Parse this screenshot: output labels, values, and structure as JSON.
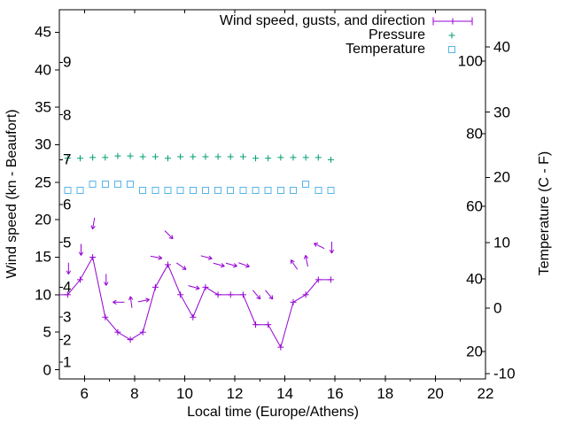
{
  "chart_data": {
    "type": "line",
    "title": "",
    "x_axis": {
      "label": "Local time (Europe/Athens)",
      "range_hours": [
        5,
        22
      ],
      "major_ticks": [
        6,
        8,
        10,
        12,
        14,
        16,
        18,
        20,
        22
      ],
      "minor_tick_hours": [
        6,
        7,
        8,
        9,
        10,
        11,
        12,
        13,
        14,
        15,
        16,
        17,
        18,
        19,
        20,
        21
      ]
    },
    "y_left": {
      "label": "Wind speed (kn - Beaufort)",
      "range_kn": [
        -1.2,
        48
      ],
      "major_ticks_kn": [
        0,
        5,
        10,
        15,
        20,
        25,
        30,
        35,
        40,
        45
      ],
      "beaufort_scale": [
        {
          "bft": "1",
          "kn": 1
        },
        {
          "bft": "2",
          "kn": 4
        },
        {
          "bft": "3",
          "kn": 7
        },
        {
          "bft": "4",
          "kn": 11
        },
        {
          "bft": "5",
          "kn": 17
        },
        {
          "bft": "6",
          "kn": 22
        },
        {
          "bft": "7",
          "kn": 28
        },
        {
          "bft": "8",
          "kn": 34
        },
        {
          "bft": "9",
          "kn": 41
        }
      ]
    },
    "y_right": {
      "label": "Temperature (C - F)",
      "celsius_ticks": [
        -10,
        0,
        10,
        20,
        30,
        40
      ],
      "fahrenheit_labels": [
        20,
        40,
        60,
        80,
        100
      ]
    },
    "legend": {
      "entries": [
        {
          "label": "Wind speed, gusts, and direction",
          "marker": "line-plus",
          "color": "#9400d3"
        },
        {
          "label": "Pressure",
          "marker": "plus",
          "color": "#009e73"
        },
        {
          "label": "Temperature",
          "marker": "square",
          "color": "#56b4e9"
        }
      ]
    },
    "series": {
      "time_h": [
        5.33,
        5.83,
        6.33,
        6.83,
        7.33,
        7.83,
        8.33,
        8.83,
        9.33,
        9.83,
        10.33,
        10.83,
        11.33,
        11.83,
        12.33,
        12.83,
        13.33,
        13.83,
        14.33,
        14.83,
        15.33,
        15.83
      ],
      "wind": {
        "name": "Wind speed, gusts, and direction",
        "color": "#9400d3",
        "lead_in": {
          "t": 5.0,
          "kn": 10
        },
        "speed_kn": [
          10,
          12,
          15,
          7,
          5,
          4,
          5,
          11,
          14,
          10,
          7,
          11,
          10,
          10,
          10,
          6,
          6,
          3,
          9,
          10,
          12,
          12
        ],
        "gust_kn": [
          13.5,
          16,
          19.5,
          12,
          9,
          9,
          9.2,
          15,
          18,
          13.8,
          11,
          15,
          14,
          14,
          14,
          10,
          10,
          null,
          14,
          14.5,
          16.5,
          16.3
        ],
        "gust_dir_screen_deg": [
          90,
          90,
          100,
          90,
          180,
          262,
          349,
          10,
          45,
          35,
          15,
          15,
          15,
          15,
          20,
          50,
          50,
          null,
          235,
          258,
          207,
          90
        ]
      },
      "pressure": {
        "name": "Pressure",
        "color": "#009e73",
        "level_on_left_axis_units": [
          28.2,
          28.2,
          28.3,
          28.3,
          28.5,
          28.5,
          28.4,
          28.4,
          28.2,
          28.4,
          28.4,
          28.4,
          28.4,
          28.4,
          28.4,
          28.2,
          28.2,
          28.3,
          28.3,
          28.3,
          28.3,
          28.0
        ]
      },
      "temperature": {
        "name": "Temperature",
        "color": "#56b4e9",
        "celsius": [
          18,
          18,
          19,
          19,
          19,
          19,
          18,
          18,
          18,
          18,
          18,
          18,
          18,
          18,
          18,
          18,
          18,
          18,
          18,
          19,
          18,
          18
        ]
      }
    }
  }
}
